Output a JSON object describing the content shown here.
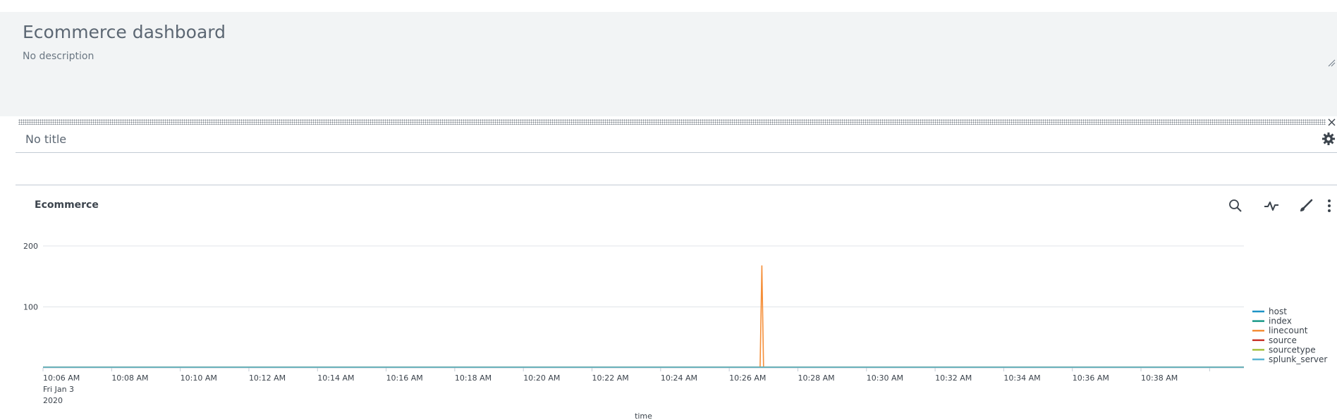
{
  "dashboard": {
    "title": "Ecommerce dashboard",
    "description": "No description"
  },
  "panel": {
    "title": "No title"
  },
  "visualization": {
    "title": "Ecommerce",
    "actions": [
      "search-icon",
      "pulse-icon",
      "brush-icon",
      "more-icon"
    ]
  },
  "colors": {
    "header_bg": "#f2f4f5",
    "host": "#1e93c6",
    "index": "#1a9988",
    "linecount": "#f58f39",
    "source": "#c9372c",
    "sourcetype": "#a5c13d",
    "splunk_server": "#5ab5d3"
  },
  "chart_data": {
    "type": "line",
    "title": "Ecommerce",
    "xlabel": "time",
    "ylabel": "",
    "ylim": [
      0,
      200
    ],
    "yticks": [
      100,
      200
    ],
    "xlim_minutes": [
      0,
      35
    ],
    "x_tick_labels": [
      "10:06 AM",
      "10:08 AM",
      "10:10 AM",
      "10:12 AM",
      "10:14 AM",
      "10:16 AM",
      "10:18 AM",
      "10:20 AM",
      "10:22 AM",
      "10:24 AM",
      "10:26 AM",
      "10:28 AM",
      "10:30 AM",
      "10:32 AM",
      "10:34 AM",
      "10:36 AM",
      "10:38 AM"
    ],
    "x_subtitle": [
      "Fri Jan 3",
      "2020"
    ],
    "legend_position": "right",
    "series": [
      {
        "name": "host",
        "color": "#1e93c6",
        "points": [
          [
            0,
            1
          ],
          [
            35,
            1
          ]
        ]
      },
      {
        "name": "index",
        "color": "#1a9988",
        "points": [
          [
            0,
            1
          ],
          [
            35,
            1
          ]
        ]
      },
      {
        "name": "linecount",
        "color": "#f58f39",
        "points": [
          [
            0,
            1
          ],
          [
            20.9,
            1
          ],
          [
            20.95,
            168
          ],
          [
            21.0,
            1
          ],
          [
            35,
            1
          ]
        ]
      },
      {
        "name": "source",
        "color": "#c9372c",
        "points": [
          [
            0,
            1
          ],
          [
            35,
            1
          ]
        ]
      },
      {
        "name": "sourcetype",
        "color": "#a5c13d",
        "points": [
          [
            0,
            1
          ],
          [
            35,
            1
          ]
        ]
      },
      {
        "name": "splunk_server",
        "color": "#5ab5d3",
        "points": [
          [
            0,
            1
          ],
          [
            35,
            1
          ]
        ]
      }
    ]
  }
}
